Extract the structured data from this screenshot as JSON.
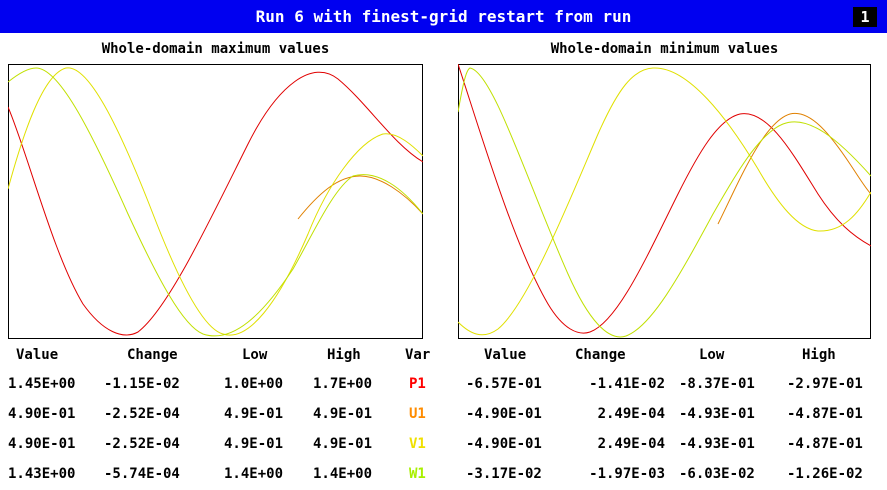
{
  "header": {
    "title": "Run 6 with finest-grid restart from run",
    "run_number": "1",
    "background_color": "#0000f0"
  },
  "chart_data": [
    {
      "type": "line",
      "title": "Whole-domain maximum values",
      "axes_visible": false,
      "grid": false,
      "series_colors": {
        "P1": "#e00000",
        "U1": "#e08000",
        "V1": "#e0e000",
        "W1": "#a0e000"
      }
    },
    {
      "type": "line",
      "title": "Whole-domain minimum values",
      "axes_visible": false,
      "grid": false,
      "series_colors": {
        "P1": "#e00000",
        "U1": "#e08000",
        "V1": "#e0e000",
        "W1": "#a0e000"
      }
    }
  ],
  "left_table": {
    "headers": [
      "Value",
      "Change",
      "Low",
      "High",
      "Var"
    ],
    "rows": [
      {
        "value": "1.45E+00",
        "change": "-1.15E-02",
        "low": "1.0E+00",
        "high": "1.7E+00",
        "var": "P1",
        "var_color": "#ff0000"
      },
      {
        "value": "4.90E-01",
        "change": "-2.52E-04",
        "low": "4.9E-01",
        "high": "4.9E-01",
        "var": "U1",
        "var_color": "#ff8c00"
      },
      {
        "value": "4.90E-01",
        "change": "-2.52E-04",
        "low": "4.9E-01",
        "high": "4.9E-01",
        "var": "V1",
        "var_color": "#f0e000"
      },
      {
        "value": "1.43E+00",
        "change": "-5.74E-04",
        "low": "1.4E+00",
        "high": "1.4E+00",
        "var": "W1",
        "var_color": "#a8f000"
      }
    ]
  },
  "right_table": {
    "headers": [
      "Value",
      "Change",
      "Low",
      "High"
    ],
    "rows": [
      {
        "value": "-6.57E-01",
        "change": "-1.41E-02",
        "low": "-8.37E-01",
        "high": "-2.97E-01"
      },
      {
        "value": "-4.90E-01",
        "change": "2.49E-04",
        "low": "-4.93E-01",
        "high": "-4.87E-01"
      },
      {
        "value": "-4.90E-01",
        "change": "2.49E-04",
        "low": "-4.93E-01",
        "high": "-4.87E-01"
      },
      {
        "value": "-3.17E-02",
        "change": "-1.97E-03",
        "low": "-6.03E-02",
        "high": "-1.26E-02"
      }
    ]
  }
}
